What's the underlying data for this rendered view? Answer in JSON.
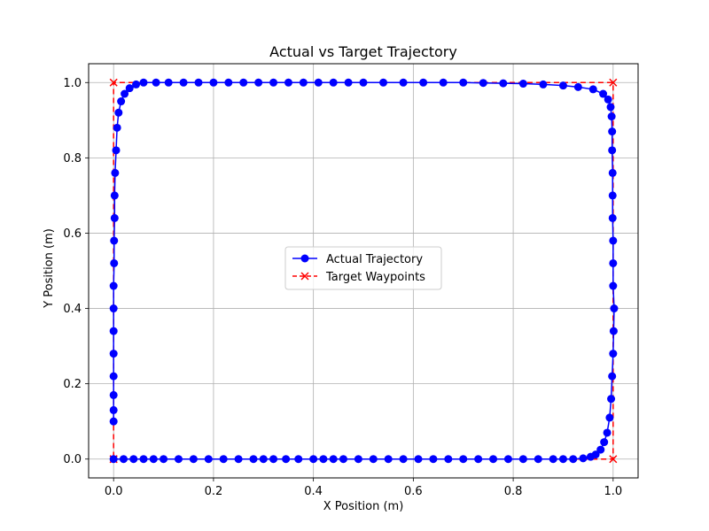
{
  "chart_data": {
    "type": "line",
    "title": "Actual vs Target Trajectory",
    "xlabel": "X Position (m)",
    "ylabel": "Y Position (m)",
    "xlim": [
      -0.05,
      1.05
    ],
    "ylim": [
      -0.05,
      1.05
    ],
    "x_ticks": [
      0.0,
      0.2,
      0.4,
      0.6,
      0.8,
      1.0
    ],
    "x_tick_labels": [
      "0.0",
      "0.2",
      "0.4",
      "0.6",
      "0.8",
      "1.0"
    ],
    "y_ticks": [
      0.0,
      0.2,
      0.4,
      0.6,
      0.8,
      1.0
    ],
    "y_tick_labels": [
      "0.0",
      "0.2",
      "0.4",
      "0.6",
      "0.8",
      "1.0"
    ],
    "grid": true,
    "legend_position": "center",
    "series": [
      {
        "name": "Actual Trajectory",
        "color": "#0000ff",
        "marker": "circle",
        "linestyle": "solid",
        "points": [
          [
            0.0,
            0.0
          ],
          [
            0.02,
            0.0
          ],
          [
            0.04,
            0.0
          ],
          [
            0.06,
            0.0
          ],
          [
            0.08,
            0.0
          ],
          [
            0.1,
            0.0
          ],
          [
            0.13,
            0.0
          ],
          [
            0.16,
            0.0
          ],
          [
            0.19,
            0.0
          ],
          [
            0.22,
            0.0
          ],
          [
            0.25,
            0.0
          ],
          [
            0.28,
            0.0
          ],
          [
            0.3,
            0.0
          ],
          [
            0.32,
            0.0
          ],
          [
            0.345,
            0.0
          ],
          [
            0.37,
            0.0
          ],
          [
            0.4,
            0.0
          ],
          [
            0.42,
            0.0
          ],
          [
            0.44,
            0.0
          ],
          [
            0.46,
            0.0
          ],
          [
            0.49,
            0.0
          ],
          [
            0.52,
            0.0
          ],
          [
            0.55,
            0.0
          ],
          [
            0.58,
            0.0
          ],
          [
            0.61,
            0.0
          ],
          [
            0.64,
            0.0
          ],
          [
            0.67,
            0.0
          ],
          [
            0.7,
            0.0
          ],
          [
            0.73,
            0.0
          ],
          [
            0.76,
            0.0
          ],
          [
            0.79,
            0.0
          ],
          [
            0.82,
            0.0
          ],
          [
            0.85,
            0.0
          ],
          [
            0.88,
            0.0
          ],
          [
            0.9,
            0.0
          ],
          [
            0.92,
            0.0
          ],
          [
            0.94,
            0.002
          ],
          [
            0.955,
            0.006
          ],
          [
            0.965,
            0.012
          ],
          [
            0.975,
            0.025
          ],
          [
            0.982,
            0.045
          ],
          [
            0.988,
            0.07
          ],
          [
            0.993,
            0.11
          ],
          [
            0.996,
            0.16
          ],
          [
            0.998,
            0.22
          ],
          [
            1.0,
            0.28
          ],
          [
            1.001,
            0.34
          ],
          [
            1.002,
            0.4
          ],
          [
            1.0,
            0.46
          ],
          [
            1.0,
            0.52
          ],
          [
            1.0,
            0.58
          ],
          [
            0.999,
            0.64
          ],
          [
            0.999,
            0.7
          ],
          [
            0.999,
            0.76
          ],
          [
            0.998,
            0.82
          ],
          [
            0.998,
            0.87
          ],
          [
            0.997,
            0.91
          ],
          [
            0.995,
            0.935
          ],
          [
            0.99,
            0.955
          ],
          [
            0.98,
            0.97
          ],
          [
            0.96,
            0.982
          ],
          [
            0.93,
            0.988
          ],
          [
            0.9,
            0.992
          ],
          [
            0.86,
            0.995
          ],
          [
            0.82,
            0.997
          ],
          [
            0.78,
            0.998
          ],
          [
            0.74,
            0.999
          ],
          [
            0.7,
            1.0
          ],
          [
            0.66,
            1.0
          ],
          [
            0.62,
            1.0
          ],
          [
            0.58,
            1.0
          ],
          [
            0.54,
            1.0
          ],
          [
            0.5,
            1.0
          ],
          [
            0.47,
            1.0
          ],
          [
            0.44,
            1.0
          ],
          [
            0.41,
            1.0
          ],
          [
            0.38,
            1.0
          ],
          [
            0.35,
            1.0
          ],
          [
            0.32,
            1.0
          ],
          [
            0.29,
            1.0
          ],
          [
            0.26,
            1.0
          ],
          [
            0.23,
            1.0
          ],
          [
            0.2,
            1.0
          ],
          [
            0.17,
            1.0
          ],
          [
            0.14,
            1.0
          ],
          [
            0.11,
            1.0
          ],
          [
            0.085,
            1.0
          ],
          [
            0.06,
            1.0
          ],
          [
            0.045,
            0.995
          ],
          [
            0.032,
            0.985
          ],
          [
            0.022,
            0.97
          ],
          [
            0.015,
            0.95
          ],
          [
            0.01,
            0.92
          ],
          [
            0.007,
            0.88
          ],
          [
            0.005,
            0.82
          ],
          [
            0.003,
            0.76
          ],
          [
            0.002,
            0.7
          ],
          [
            0.002,
            0.64
          ],
          [
            0.001,
            0.58
          ],
          [
            0.001,
            0.52
          ],
          [
            0.0,
            0.46
          ],
          [
            0.0,
            0.4
          ],
          [
            0.0,
            0.34
          ],
          [
            0.0,
            0.28
          ],
          [
            0.0,
            0.22
          ],
          [
            0.0,
            0.17
          ],
          [
            0.0,
            0.13
          ],
          [
            0.0,
            0.1
          ]
        ]
      },
      {
        "name": "Target Waypoints",
        "color": "#ff0000",
        "marker": "x",
        "linestyle": "dashed",
        "points": [
          [
            0,
            0
          ],
          [
            1,
            0
          ],
          [
            1,
            1
          ],
          [
            0,
            1
          ],
          [
            0,
            0
          ]
        ]
      }
    ]
  }
}
